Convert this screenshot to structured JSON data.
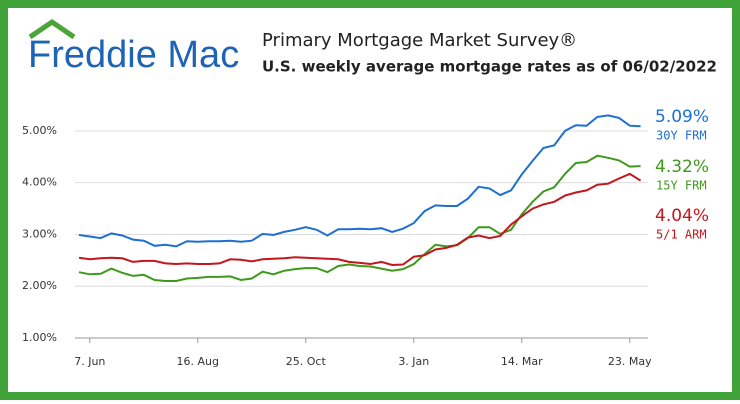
{
  "logo": {
    "brand": "Freddie Mac"
  },
  "chart_data": {
    "type": "line",
    "title": "Primary Mortgage Market Survey®",
    "subtitle": "U.S. weekly average mortgage rates as of 06/02/2022",
    "categories": [
      null,
      "7. Jun",
      null,
      null,
      null,
      null,
      null,
      null,
      null,
      null,
      null,
      "16. Aug",
      null,
      null,
      null,
      null,
      null,
      null,
      null,
      null,
      null,
      "25. Oct",
      null,
      null,
      null,
      null,
      null,
      null,
      null,
      null,
      null,
      "3. Jan",
      null,
      null,
      null,
      null,
      null,
      null,
      null,
      null,
      null,
      "14. Mar",
      null,
      null,
      null,
      null,
      null,
      null,
      null,
      null,
      null,
      "23. May",
      null
    ],
    "series": [
      {
        "name": "30Y FRM",
        "color": "#1f6fd1",
        "values": [
          2.99,
          2.96,
          2.93,
          3.02,
          2.98,
          2.9,
          2.88,
          2.78,
          2.8,
          2.77,
          2.87,
          2.86,
          2.87,
          2.87,
          2.88,
          2.86,
          2.88,
          3.01,
          2.99,
          3.05,
          3.09,
          3.14,
          3.09,
          2.98,
          3.1,
          3.1,
          3.11,
          3.1,
          3.12,
          3.05,
          3.11,
          3.22,
          3.45,
          3.56,
          3.55,
          3.55,
          3.69,
          3.92,
          3.89,
          3.76,
          3.85,
          4.16,
          4.42,
          4.67,
          4.72,
          5.0,
          5.11,
          5.1,
          5.27,
          5.3,
          5.25,
          5.1,
          5.09
        ],
        "value_labels": [
          null,
          null,
          null,
          null,
          null,
          null,
          null,
          null,
          null,
          null,
          null,
          null,
          null,
          null,
          null,
          null,
          null,
          null,
          null,
          null,
          null,
          null,
          null,
          null,
          null,
          null,
          null,
          null,
          null,
          null,
          null,
          null,
          null,
          null,
          null,
          null,
          null,
          null,
          null,
          null,
          null,
          null,
          null,
          null,
          null,
          null,
          null,
          null,
          null,
          null,
          null,
          null,
          "5.09%"
        ]
      },
      {
        "name": "15Y FRM",
        "color": "#3d9a1c",
        "values": [
          2.27,
          2.23,
          2.24,
          2.34,
          2.26,
          2.2,
          2.22,
          2.12,
          2.1,
          2.1,
          2.15,
          2.16,
          2.18,
          2.18,
          2.19,
          2.12,
          2.15,
          2.28,
          2.23,
          2.3,
          2.33,
          2.35,
          2.35,
          2.27,
          2.39,
          2.42,
          2.39,
          2.38,
          2.34,
          2.3,
          2.33,
          2.43,
          2.62,
          2.8,
          2.77,
          2.79,
          2.93,
          3.14,
          3.14,
          3.01,
          3.09,
          3.39,
          3.63,
          3.83,
          3.91,
          4.17,
          4.38,
          4.4,
          4.52,
          4.48,
          4.43,
          4.31,
          4.32
        ],
        "value_labels": [
          null,
          null,
          null,
          null,
          null,
          null,
          null,
          null,
          null,
          null,
          null,
          null,
          null,
          null,
          null,
          null,
          null,
          null,
          null,
          null,
          null,
          null,
          null,
          null,
          null,
          null,
          null,
          null,
          null,
          null,
          null,
          null,
          null,
          null,
          null,
          null,
          null,
          null,
          null,
          null,
          null,
          null,
          null,
          null,
          null,
          null,
          null,
          null,
          null,
          null,
          null,
          null,
          "4.32%"
        ]
      },
      {
        "name": "5/1 ARM",
        "color": "#c4161c",
        "values": [
          2.55,
          2.52,
          2.54,
          2.55,
          2.54,
          2.47,
          2.49,
          2.49,
          2.44,
          2.43,
          2.44,
          2.43,
          2.43,
          2.44,
          2.52,
          2.51,
          2.48,
          2.52,
          2.53,
          2.54,
          2.56,
          2.55,
          2.54,
          2.53,
          2.52,
          2.47,
          2.45,
          2.43,
          2.47,
          2.41,
          2.42,
          2.57,
          2.6,
          2.71,
          2.74,
          2.8,
          2.94,
          2.98,
          2.93,
          2.97,
          3.19,
          3.35,
          3.5,
          3.58,
          3.63,
          3.75,
          3.81,
          3.85,
          3.96,
          3.98,
          4.08,
          4.17,
          4.04
        ],
        "value_labels": [
          null,
          null,
          null,
          null,
          null,
          null,
          null,
          null,
          null,
          null,
          null,
          null,
          null,
          null,
          null,
          null,
          null,
          null,
          null,
          null,
          null,
          null,
          null,
          null,
          null,
          null,
          null,
          null,
          null,
          null,
          null,
          null,
          null,
          null,
          null,
          null,
          null,
          null,
          null,
          null,
          null,
          null,
          null,
          null,
          null,
          null,
          null,
          null,
          null,
          null,
          null,
          null,
          "4.04%"
        ]
      }
    ],
    "ylim": [
      1,
      5.5
    ],
    "yticks": [
      {
        "value": 1,
        "label": "1.00%"
      },
      {
        "value": 2,
        "label": "2.00%"
      },
      {
        "value": 3,
        "label": "3.00%"
      },
      {
        "value": 4,
        "label": "4.00%"
      },
      {
        "value": 5,
        "label": "5.00%"
      }
    ],
    "grid": true
  }
}
